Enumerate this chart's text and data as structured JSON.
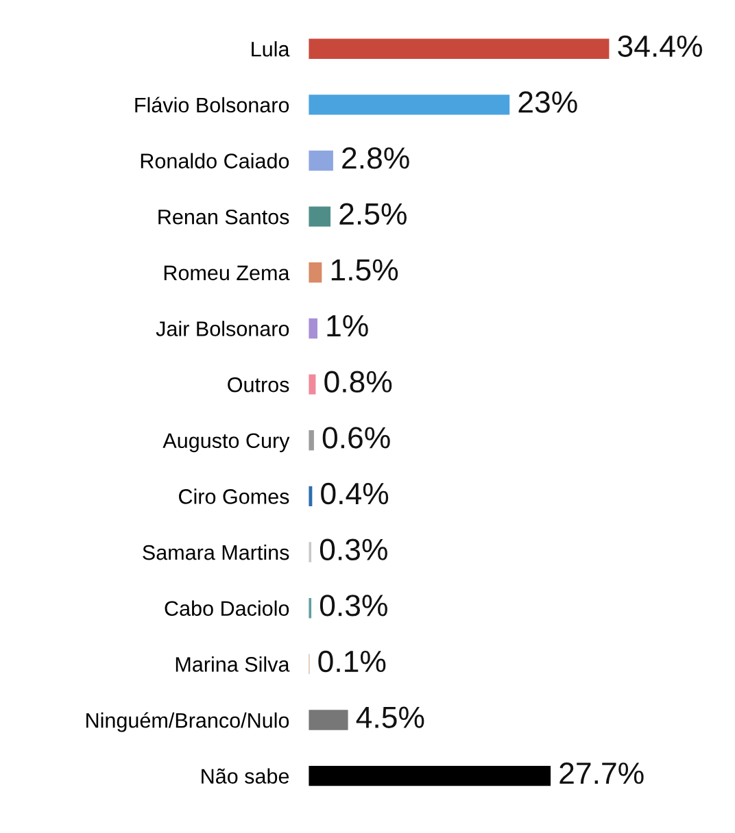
{
  "chart_data": {
    "type": "bar",
    "orientation": "horizontal",
    "grid": false,
    "legend": false,
    "tick_labels": "y",
    "categories": [
      "Lula",
      "Flávio Bolsonaro",
      "Ronaldo Caiado",
      "Renan Santos",
      "Romeu Zema",
      "Jair Bolsonaro",
      "Outros",
      "Augusto Cury",
      "Ciro Gomes",
      "Samara Martins",
      "Cabo Daciolo",
      "Marina Silva",
      "Ninguém/Branco/Nulo",
      "Não sabe"
    ],
    "values": [
      34.4,
      23,
      2.8,
      2.5,
      1.5,
      1,
      0.8,
      0.6,
      0.4,
      0.3,
      0.3,
      0.1,
      4.5,
      27.7
    ],
    "value_labels": [
      "34.4%",
      "23%",
      "2.8%",
      "2.5%",
      "1.5%",
      "1%",
      "0.8%",
      "0.6%",
      "0.4%",
      "0.3%",
      "0.3%",
      "0.1%",
      "4.5%",
      "27.7%"
    ],
    "colors": [
      "#c8493c",
      "#4aa3df",
      "#8ea6e0",
      "#4f8e88",
      "#d98a66",
      "#a78fd6",
      "#f08a9b",
      "#9b9b9b",
      "#2c6fb0",
      "#c8c8c8",
      "#5f9ea0",
      "#d4a88a",
      "#777777",
      "#000000"
    ]
  }
}
